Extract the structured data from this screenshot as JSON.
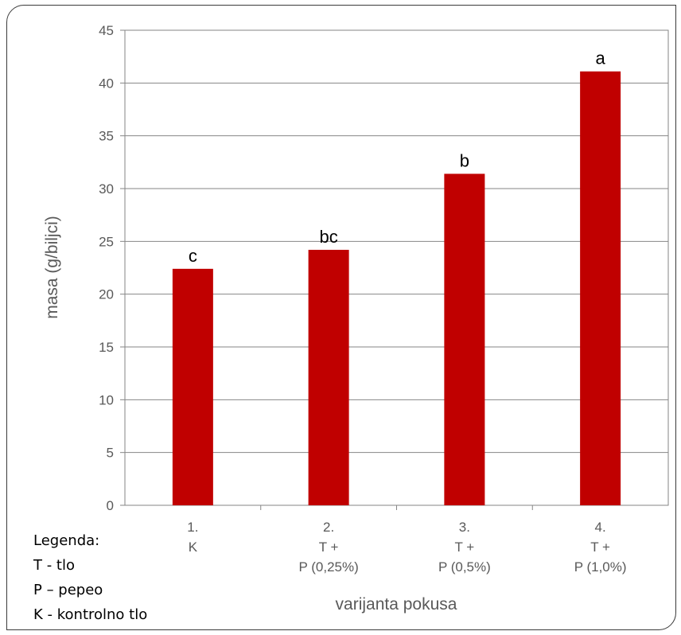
{
  "chart_data": {
    "type": "bar",
    "categories": [
      [
        "1.",
        "K"
      ],
      [
        "2.",
        "T +",
        "P (0,25%)"
      ],
      [
        "3.",
        "T +",
        "P (0,5%)"
      ],
      [
        "4.",
        "T +",
        "P (1,0%)"
      ]
    ],
    "values": [
      22.4,
      24.2,
      31.4,
      41.1
    ],
    "bar_labels": [
      "c",
      "bc",
      "b",
      "a"
    ],
    "ylabel": "masa (g/biljci)",
    "xlabel": "varijanta pokusa",
    "ylim": [
      0,
      45
    ],
    "yticks": [
      "0",
      "5",
      "10",
      "15",
      "20",
      "25",
      "30",
      "35",
      "40",
      "45"
    ],
    "ytick_values": [
      0,
      5,
      10,
      15,
      20,
      25,
      30,
      35,
      40,
      45
    ],
    "grid": "horizontal",
    "bar_color": "#C00000"
  },
  "legend": {
    "title": "Legenda:",
    "items": [
      "T - tlo",
      "P – pepeo",
      "K - kontrolno tlo"
    ]
  }
}
